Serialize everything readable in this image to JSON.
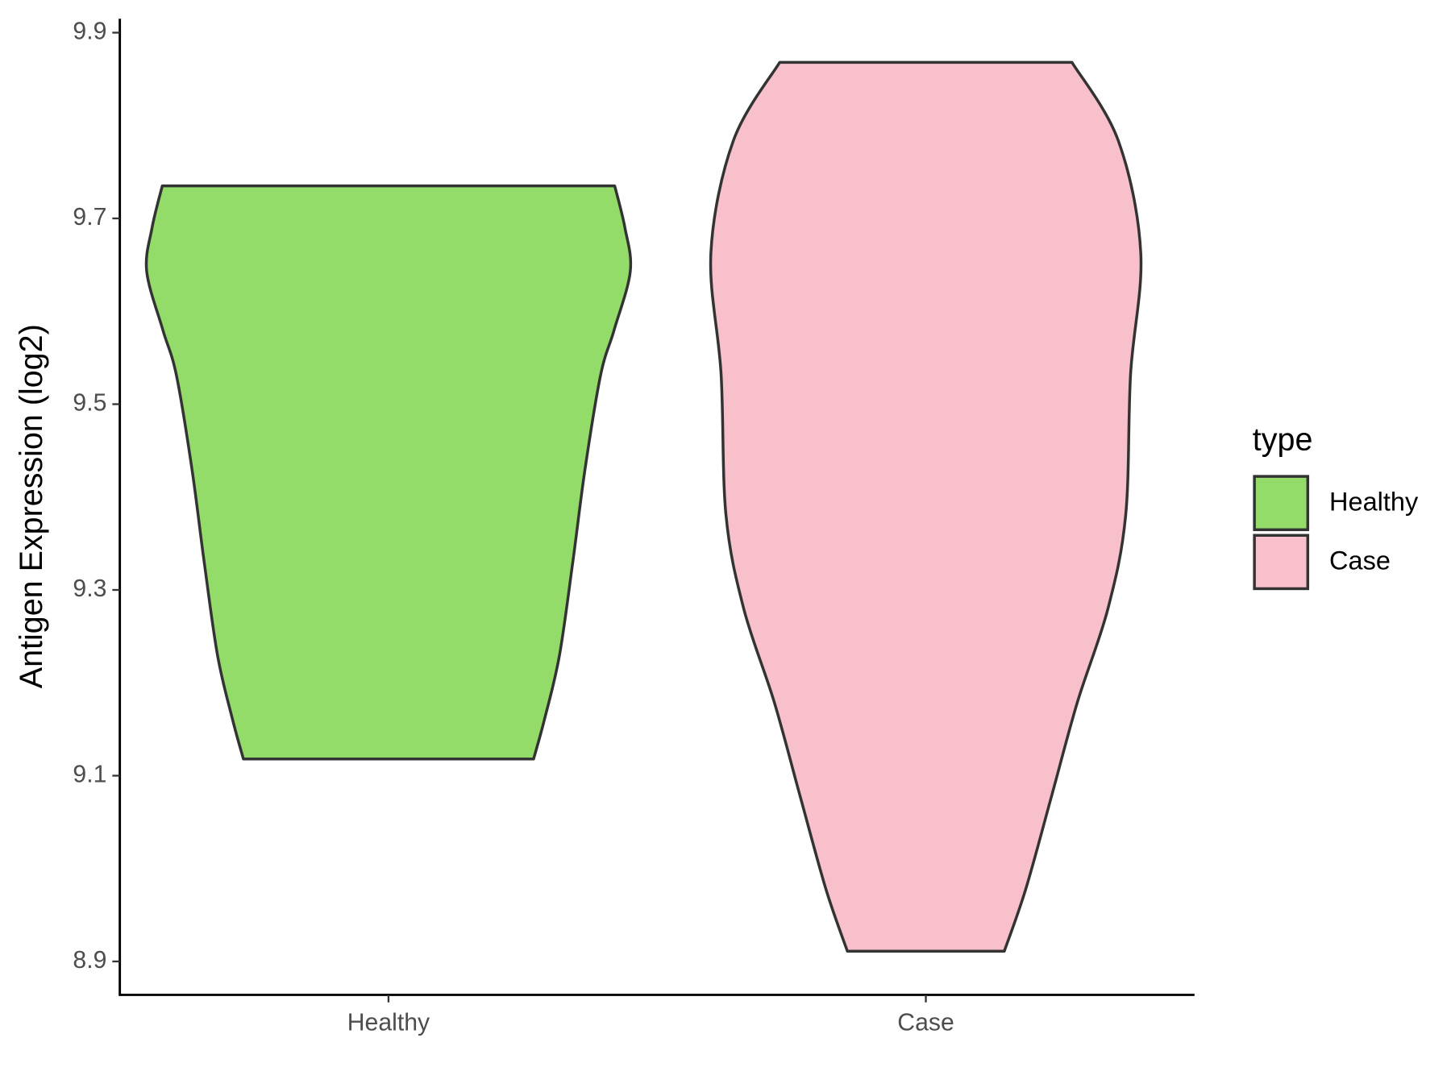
{
  "chart_data": {
    "type": "violin",
    "y_label": "Antigen Expression (log2)",
    "categories": [
      "Healthy",
      "Case"
    ],
    "legend_title": "type",
    "series": [
      {
        "name": "Healthy",
        "color": "#93dc6a",
        "y": [
          9.735,
          9.69,
          9.643,
          9.58,
          9.532,
          9.431,
          9.33,
          9.229,
          9.16,
          9.118
        ],
        "density": [
          0.421,
          0.44,
          0.45,
          0.42,
          0.395,
          0.366,
          0.343,
          0.318,
          0.29,
          0.27
        ]
      },
      {
        "name": "Case",
        "color": "#f7c0cb",
        "y": [
          9.868,
          9.784,
          9.663,
          9.532,
          9.381,
          9.28,
          9.179,
          9.078,
          8.978,
          8.911
        ],
        "density": [
          0.272,
          0.358,
          0.4,
          0.381,
          0.372,
          0.339,
          0.282,
          0.234,
          0.186,
          0.146
        ]
      }
    ],
    "ylim": [
      8.864,
      9.915
    ],
    "yticks": [
      8.9,
      9.1,
      9.3,
      9.5,
      9.7,
      9.9
    ]
  }
}
